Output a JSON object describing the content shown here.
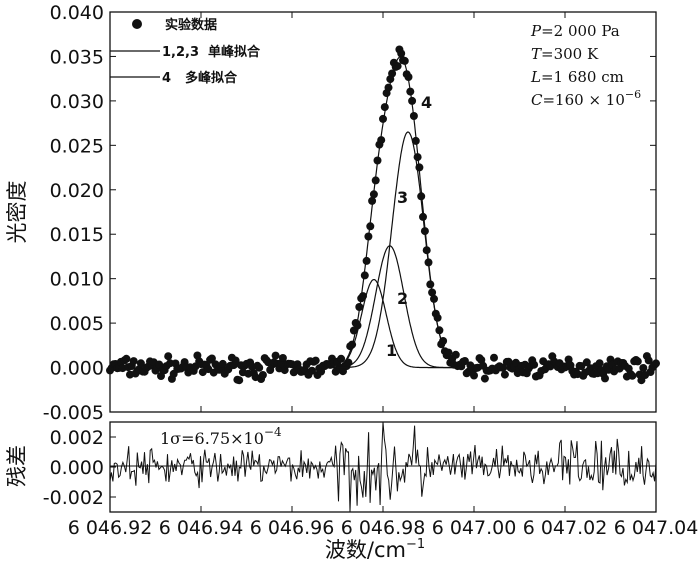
{
  "chart_data": [
    {
      "type": "scatter",
      "title": "",
      "ylabel": "光密度",
      "xlim": [
        6046.92,
        6047.04
      ],
      "ylim": [
        -0.005,
        0.04
      ],
      "yticks": [
        "0.040",
        "0.035",
        "0.030",
        "0.025",
        "0.020",
        "0.015",
        "0.010",
        "0.005",
        "0.000",
        "-0.005"
      ],
      "legend": {
        "placement": "top-left",
        "entries": [
          {
            "marker": "●",
            "label": "实验数据"
          },
          {
            "marker": "1,2,3",
            "label": "单峰拟合"
          },
          {
            "marker": "4",
            "label": "多峰拟合"
          }
        ]
      },
      "conditions": [
        {
          "var": "P",
          "text": "=2 000 Pa"
        },
        {
          "var": "T",
          "text": "=300 K"
        },
        {
          "var": "L",
          "text": "=1 680 cm"
        },
        {
          "var": "C",
          "text": "=160 × 10",
          "sup": "−6"
        }
      ],
      "peaks": [
        {
          "label": "1",
          "center": 6046.978,
          "amplitude": 0.0099,
          "sigma": 0.0027
        },
        {
          "label": "2",
          "center": 6046.9815,
          "amplitude": 0.0137,
          "sigma": 0.0031
        },
        {
          "label": "3",
          "center": 6046.9855,
          "amplitude": 0.0265,
          "sigma": 0.0035
        }
      ],
      "fit_label": "4",
      "grid": false
    },
    {
      "type": "line",
      "ylabel": "残差",
      "xlabel": "波数/cm",
      "xlabel_sup": "−1",
      "xlim": [
        6046.92,
        6047.04
      ],
      "ylim": [
        -0.003,
        0.003
      ],
      "xticks": [
        "6 046.92",
        "6 046.94",
        "6 046.96",
        "6 046.98",
        "6 047.00",
        "6 047.02",
        "6 047.04"
      ],
      "yticks": [
        "0.002",
        "0.000",
        "-0.002"
      ],
      "annotation": {
        "text": "1σ=6.75×10",
        "sup": "−4"
      },
      "grid": false
    }
  ]
}
